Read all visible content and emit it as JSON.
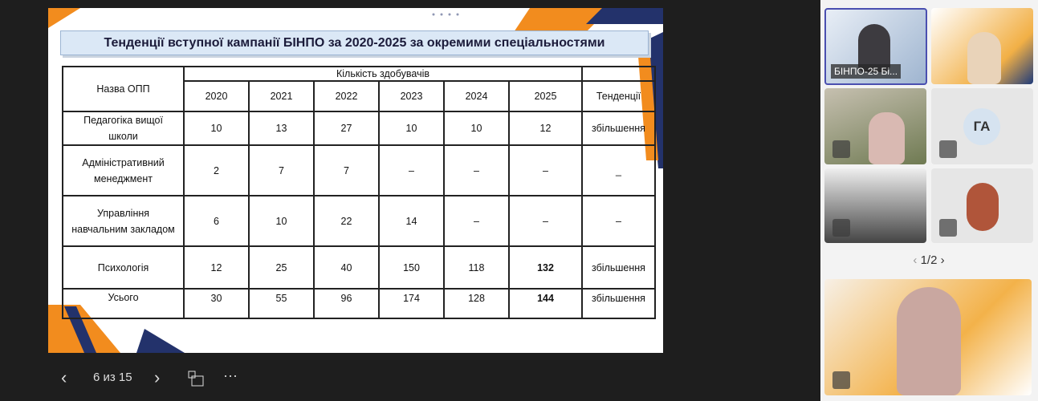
{
  "slide": {
    "title": "Тенденції вступної кампанії БІНПО за 2020-2025 за окремими спеціальностями",
    "table": {
      "name_header": "Назва ОПП",
      "group_header": "Кількість здобувачів",
      "years": [
        "2020",
        "2021",
        "2022",
        "2023",
        "2024",
        "2025"
      ],
      "trend_header": "Тенденції",
      "rows": [
        {
          "name": "Педагогіка вищої школи",
          "cells": [
            "10",
            "13",
            "27",
            "10",
            "10",
            "12"
          ],
          "trend": "збільшення"
        },
        {
          "name": "Адміністративний менеджмент",
          "cells": [
            "2",
            "7",
            "7",
            "–",
            "–",
            "–"
          ],
          "trend": "_"
        },
        {
          "name": "Управління навчальним закладом",
          "cells": [
            "6",
            "10",
            "22",
            "14",
            "–",
            "–"
          ],
          "trend": "–"
        },
        {
          "name": "Психологія",
          "cells": [
            "12",
            "25",
            "40",
            "150",
            "118",
            "132"
          ],
          "trend": "збільшення"
        },
        {
          "name": "Усього",
          "cells": [
            "30",
            "55",
            "96",
            "174",
            "128",
            "144"
          ],
          "trend": "збільшення"
        }
      ]
    }
  },
  "controls": {
    "page": "6 из 15"
  },
  "participants": {
    "first_label": "БІНПО-25 Бі...",
    "initials": "ГА",
    "pager": "1/2"
  }
}
